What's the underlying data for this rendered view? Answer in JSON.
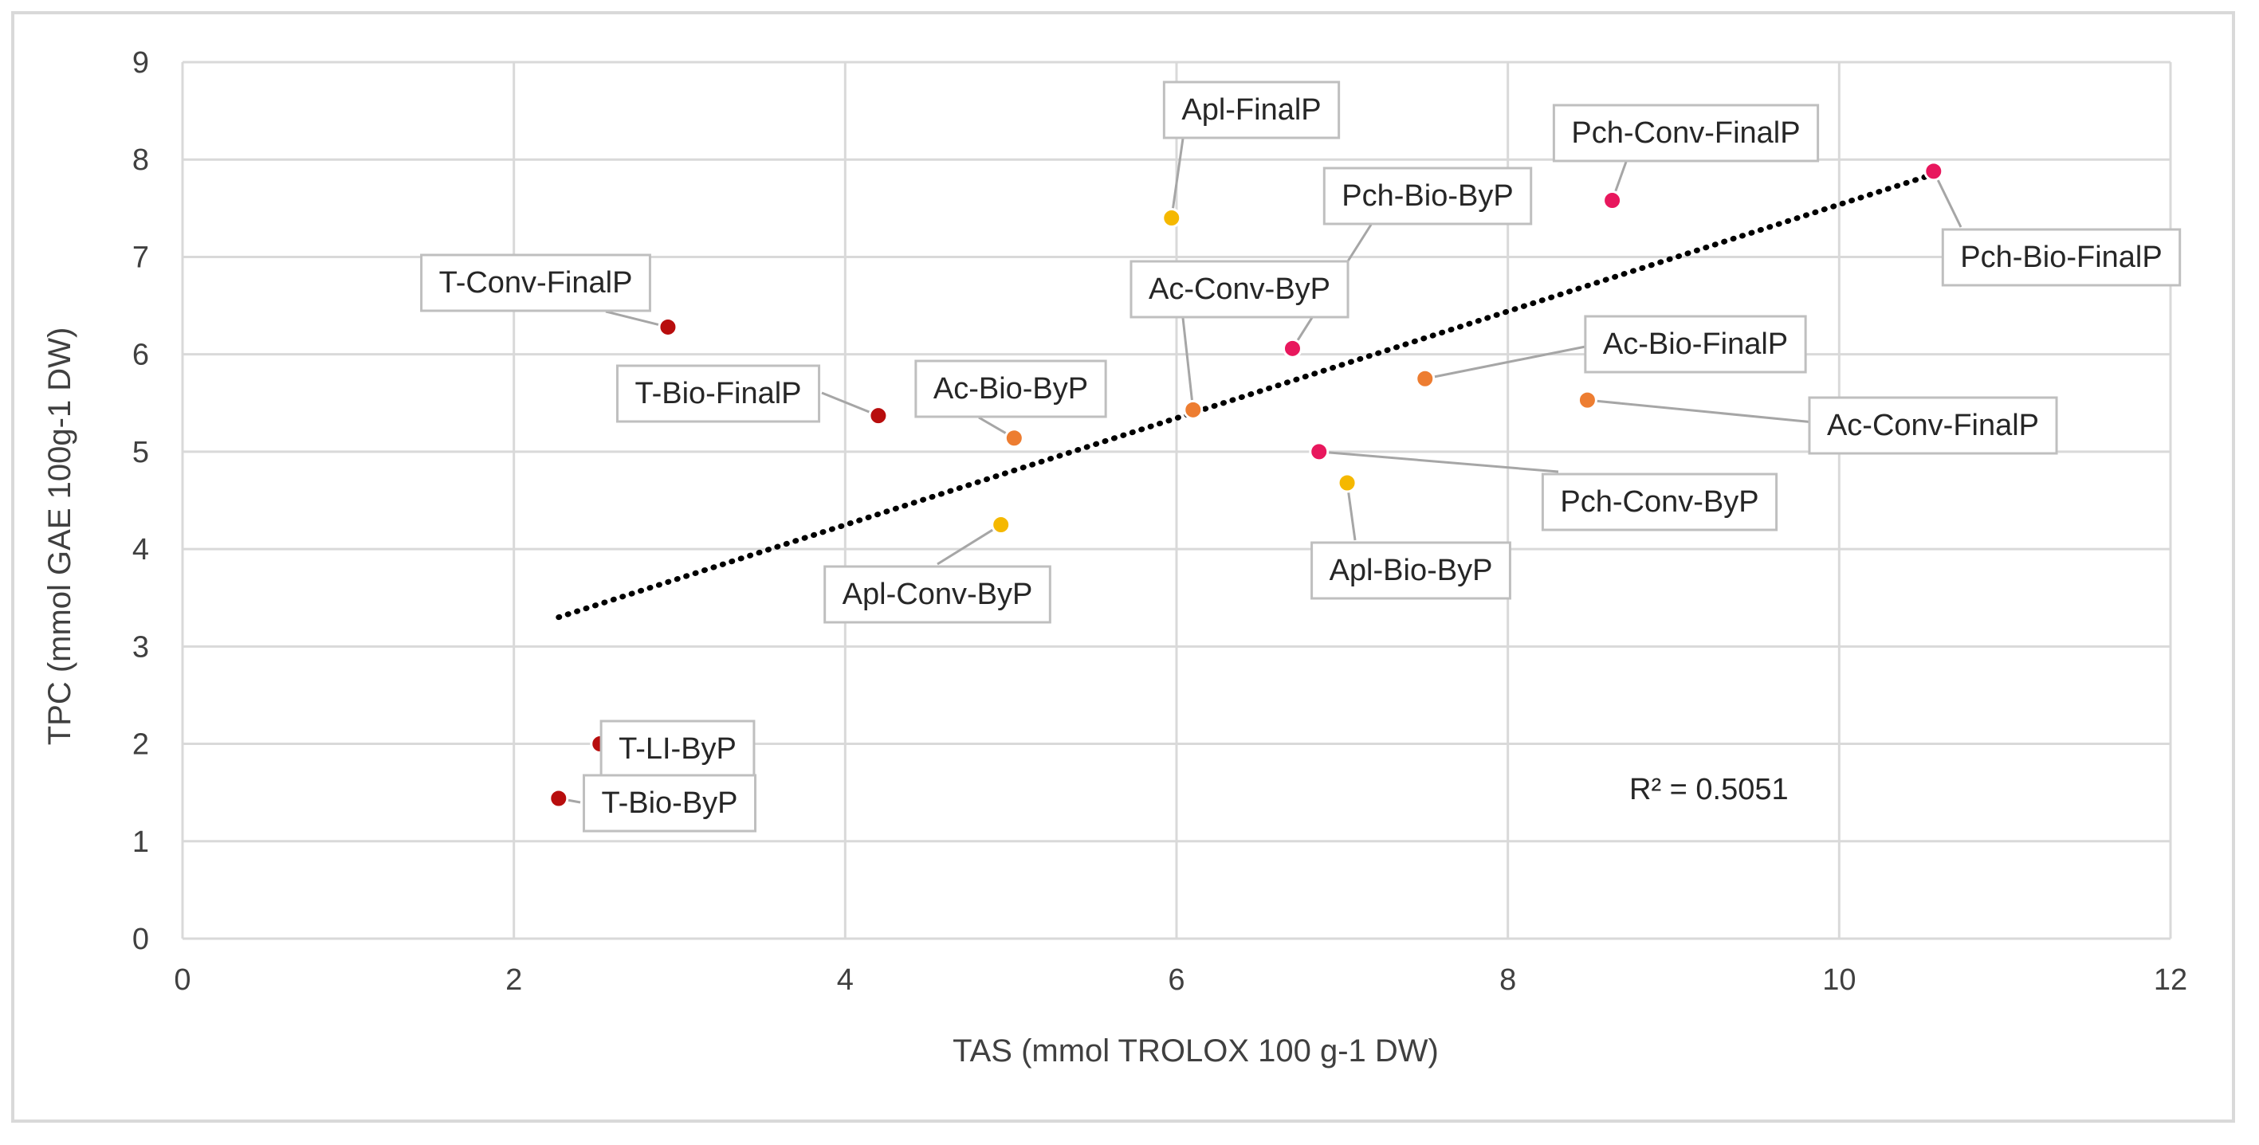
{
  "chart_data": {
    "type": "scatter",
    "title": "",
    "xlabel": "TAS (mmol TROLOX 100 g-1 DW)",
    "ylabel": "TPC (mmol GAE 100g-1 DW)",
    "xlim": [
      0,
      12
    ],
    "ylim": [
      0,
      9
    ],
    "xticks": [
      "0",
      "2",
      "4",
      "6",
      "8",
      "10",
      "12"
    ],
    "yticks": [
      "0",
      "1",
      "2",
      "3",
      "4",
      "5",
      "6",
      "7",
      "8",
      "9"
    ],
    "grid": true,
    "legend": "none",
    "points": [
      {
        "label": "Apl-FinalP",
        "x": 5.97,
        "y": 7.4,
        "color": "#f5b800"
      },
      {
        "label": "Pch-Conv-FinalP",
        "x": 8.63,
        "y": 7.58,
        "color": "#e8175d"
      },
      {
        "label": "Pch-Bio-FinalP",
        "x": 10.57,
        "y": 7.88,
        "color": "#e8175d"
      },
      {
        "label": "T-Conv-FinalP",
        "x": 2.93,
        "y": 6.28,
        "color": "#b80d0d"
      },
      {
        "label": "Pch-Bio-ByP",
        "x": 6.7,
        "y": 6.06,
        "color": "#e8175d"
      },
      {
        "label": "Ac-Conv-ByP",
        "x": 6.1,
        "y": 5.43,
        "color": "#ed7d31"
      },
      {
        "label": "Ac-Bio-FinalP",
        "x": 7.5,
        "y": 5.75,
        "color": "#ed7d31"
      },
      {
        "label": "T-Bio-FinalP",
        "x": 4.2,
        "y": 5.37,
        "color": "#b80d0d"
      },
      {
        "label": "Ac-Bio-ByP",
        "x": 5.02,
        "y": 5.14,
        "color": "#ed7d31"
      },
      {
        "label": "Ac-Conv-FinalP",
        "x": 8.48,
        "y": 5.53,
        "color": "#ed7d31"
      },
      {
        "label": "Pch-Conv-ByP",
        "x": 6.86,
        "y": 5.0,
        "color": "#e8175d"
      },
      {
        "label": "Apl-Bio-ByP",
        "x": 7.03,
        "y": 4.68,
        "color": "#f5b800"
      },
      {
        "label": "Apl-Conv-ByP",
        "x": 4.94,
        "y": 4.25,
        "color": "#f5b800"
      },
      {
        "label": "T-LI-ByP",
        "x": 2.52,
        "y": 2.0,
        "color": "#b80d0d"
      },
      {
        "label": "T-Bio-ByP",
        "x": 2.27,
        "y": 1.44,
        "color": "#b80d0d"
      }
    ],
    "trendline": {
      "type": "linear",
      "x_start": 2.27,
      "y_start": 3.3,
      "x_end": 10.57,
      "y_end": 7.85,
      "style": "dotted",
      "color": "#000000"
    },
    "annotation": "R² = 0.5051"
  }
}
